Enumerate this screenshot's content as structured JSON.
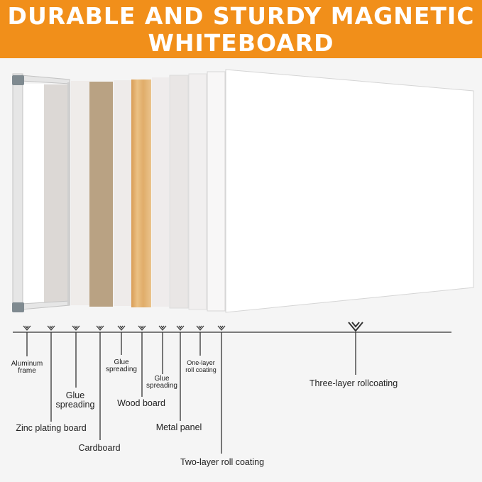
{
  "header": {
    "line1": "DURABLE AND STURDY MAGNETIC",
    "line2": "WHITEBOARD",
    "color": "#f18f1a"
  },
  "layers": {
    "aluminum_frame": [
      "Aluminum",
      "frame"
    ],
    "zinc_plating_board": "Zinc plating board",
    "glue_spreading_1": [
      "Glue",
      "spreading"
    ],
    "cardboard": "Cardboard",
    "glue_spreading_2": [
      "Glue",
      "spreading"
    ],
    "wood_board": "Wood board",
    "glue_spreading_3": [
      "Glue",
      "spreading"
    ],
    "metal_panel": "Metal panel",
    "one_layer_roll_coating": [
      "One-layer",
      "roll coating"
    ],
    "two_layer_roll_coating": "Two-layer roll coating",
    "three_layer_rollcoating": "Three-layer rollcoating"
  },
  "colors": {
    "cardboard": "#b9a283",
    "wood": "#e2b06e",
    "frame_corner": "#7f8a90"
  }
}
